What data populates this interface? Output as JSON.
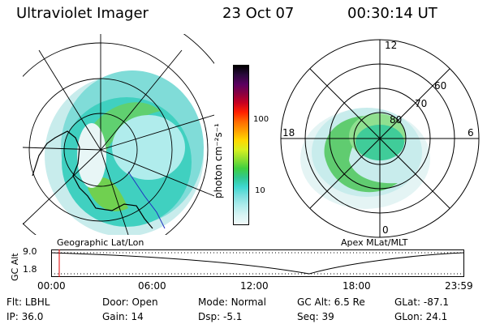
{
  "header": {
    "instrument": "Ultraviolet Imager",
    "date": "23 Oct 07",
    "time": "00:30:14 UT"
  },
  "left_panel": {
    "label": "Geographic Lat/Lon"
  },
  "right_panel": {
    "label": "Apex MLat/MLT",
    "mlt_labels": {
      "top": "12",
      "right": "6",
      "bottom": "0",
      "left": "18"
    },
    "lat_labels": [
      "60",
      "70",
      "80"
    ]
  },
  "colorbar": {
    "unit_label": "photon cm⁻²s⁻¹",
    "ticks": [
      "100",
      "10"
    ],
    "colors": [
      "#000000",
      "#2a0a3c",
      "#5a0060",
      "#8a0040",
      "#c80020",
      "#ff2000",
      "#ff6a00",
      "#ffa000",
      "#ffd800",
      "#d8f020",
      "#90e030",
      "#40d040",
      "#30c890",
      "#40d8d0",
      "#80e0e0",
      "#b0ecec",
      "#d8f4f4",
      "#f0fafa"
    ]
  },
  "altitude_plot": {
    "axis_label": "GC Alt",
    "y_ticks": [
      "9.0",
      "1.8"
    ],
    "x_ticks": [
      "00:00",
      "06:00",
      "12:00",
      "18:00",
      "23:59"
    ]
  },
  "status": {
    "row1": [
      {
        "label": "Flt:",
        "value": "LBHL"
      },
      {
        "label": "Door:",
        "value": "Open"
      },
      {
        "label": "Mode:",
        "value": "Normal"
      },
      {
        "label": "GC Alt:",
        "value": "6.5 Re"
      },
      {
        "label": "GLat:",
        "value": "-87.1"
      }
    ],
    "row2": [
      {
        "label": "IP:",
        "value": "36.0"
      },
      {
        "label": "Gain:",
        "value": "14"
      },
      {
        "label": "Dsp:",
        "value": "-5.1"
      },
      {
        "label": "Seq:",
        "value": "39"
      },
      {
        "label": "GLon:",
        "value": "24.1"
      }
    ]
  }
}
